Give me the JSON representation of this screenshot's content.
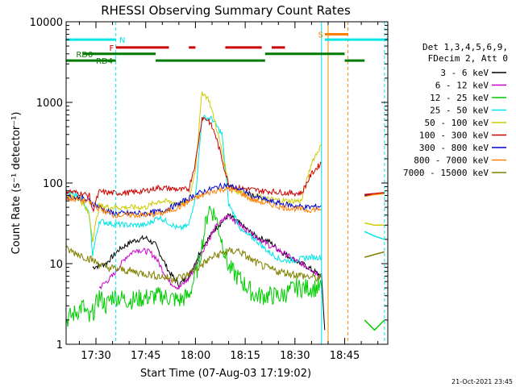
{
  "chart_data": {
    "type": "line",
    "title": "RHESSI Observing Summary Count Rates",
    "xlabel": "Start Time (07-Aug-03 17:19:02)",
    "ylabel": "Count Rate (s⁻¹ detector⁻¹)",
    "x_unit": "UT minutes",
    "xlim": [
      "17:21",
      "18:58"
    ],
    "ylim": [
      1,
      10000
    ],
    "y_scale": "log",
    "grid": false,
    "legend_position": "right",
    "legend_header": [
      "Det 1,3,4,5,6,9,",
      "FDecim 2, Att 0"
    ],
    "x_ticks": [
      "17:30",
      "17:45",
      "18:00",
      "18:15",
      "18:30",
      "18:45"
    ],
    "y_ticks": [
      "1",
      "10",
      "100",
      "1000",
      "10000"
    ],
    "series": [
      {
        "name": "3 - 6 keV",
        "color": "#000000",
        "x": [
          "17:29",
          "17:33",
          "17:37",
          "17:41",
          "17:45",
          "17:48",
          "17:52",
          "17:55",
          "17:58",
          "18:02",
          "18:06",
          "18:10",
          "18:14",
          "18:18",
          "18:22",
          "18:26",
          "18:30",
          "18:34",
          "18:38",
          "18:39"
        ],
        "y": [
          9,
          10,
          15,
          19,
          21,
          17,
          8,
          5.5,
          7,
          16,
          27,
          40,
          30,
          22,
          19,
          14,
          11,
          9,
          7,
          1.5
        ]
      },
      {
        "name": "6 - 12 keV",
        "color": "#cc00cc",
        "x": [
          "17:31",
          "17:35",
          "17:39",
          "17:42",
          "17:46",
          "17:48",
          "17:52",
          "17:55",
          "17:58",
          "18:02",
          "18:06",
          "18:10",
          "18:14",
          "18:18",
          "18:22",
          "18:26",
          "18:30",
          "18:34",
          "18:38"
        ],
        "y": [
          5,
          7,
          12,
          15,
          14,
          12,
          6,
          5,
          6.5,
          14,
          28,
          40,
          29,
          22,
          17,
          14,
          11,
          9,
          7
        ]
      },
      {
        "name": "12 - 25 keV",
        "color": "#00cc00",
        "x": [
          "17:21",
          "17:24",
          "17:26",
          "17:28",
          "17:30",
          "17:31",
          "17:33",
          "17:35",
          "17:40",
          "17:45",
          "17:50",
          "17:55",
          "17:58",
          "18:01",
          "18:04",
          "18:06",
          "18:10",
          "18:14",
          "18:18",
          "18:22",
          "18:26",
          "18:30",
          "18:34",
          "18:38"
        ],
        "y": [
          2,
          2.5,
          3,
          2,
          3,
          4,
          3,
          4,
          3.5,
          3.8,
          4,
          3.5,
          4,
          10,
          50,
          40,
          9,
          6,
          4,
          4,
          4,
          5,
          5,
          5
        ]
      },
      {
        "name": "25 - 50 keV",
        "color": "#00e5e5",
        "x": [
          "17:21",
          "17:25",
          "17:28",
          "17:29",
          "17:31",
          "17:35",
          "17:40",
          "17:45",
          "17:49",
          "17:52",
          "17:55",
          "17:58",
          "18:00",
          "18:02",
          "18:05",
          "18:08",
          "18:10",
          "18:12",
          "18:14",
          "18:18",
          "18:22",
          "18:26",
          "18:30",
          "18:34",
          "18:38"
        ],
        "y": [
          75,
          70,
          40,
          13,
          34,
          31,
          30,
          30,
          38,
          32,
          27,
          30,
          70,
          650,
          630,
          400,
          55,
          38,
          25,
          20,
          14,
          11,
          11,
          12,
          12
        ]
      },
      {
        "name": "50 - 100 keV",
        "color": "#cccc00",
        "x": [
          "17:21",
          "17:25",
          "17:28",
          "17:29",
          "17:31",
          "17:35",
          "17:40",
          "17:45",
          "17:49",
          "17:53",
          "17:56",
          "17:58",
          "18:00",
          "18:02",
          "18:04",
          "18:06",
          "18:08",
          "18:10",
          "18:12",
          "18:15",
          "18:20",
          "18:24",
          "18:28",
          "18:32",
          "18:35",
          "18:38"
        ],
        "y": [
          70,
          65,
          40,
          20,
          52,
          50,
          50,
          50,
          60,
          58,
          55,
          60,
          150,
          1350,
          1100,
          550,
          250,
          100,
          80,
          75,
          65,
          62,
          60,
          60,
          180,
          300
        ]
      },
      {
        "name": "100 - 300 keV",
        "color": "#cc0000",
        "x": [
          "17:21",
          "17:25",
          "17:28",
          "17:29",
          "17:31",
          "17:35",
          "17:40",
          "17:45",
          "17:49",
          "17:53",
          "17:56",
          "17:58",
          "18:00",
          "18:02",
          "18:04",
          "18:06",
          "18:08",
          "18:10",
          "18:12",
          "18:15",
          "18:20",
          "18:24",
          "18:28",
          "18:32",
          "18:35",
          "18:38"
        ],
        "y": [
          80,
          75,
          70,
          45,
          78,
          75,
          76,
          80,
          88,
          85,
          82,
          85,
          180,
          650,
          600,
          400,
          200,
          95,
          88,
          85,
          80,
          78,
          75,
          75,
          130,
          180
        ]
      },
      {
        "name": "300 - 800 keV",
        "color": "#0000cc",
        "x": [
          "17:21",
          "17:25",
          "17:28",
          "17:31",
          "17:35",
          "17:40",
          "17:45",
          "17:50",
          "17:55",
          "18:00",
          "18:05",
          "18:09",
          "18:13",
          "18:17",
          "18:22",
          "18:26",
          "18:30",
          "18:34",
          "18:38"
        ],
        "y": [
          68,
          65,
          60,
          50,
          42,
          42,
          42,
          45,
          55,
          72,
          85,
          95,
          85,
          70,
          60,
          55,
          52,
          50,
          52
        ]
      },
      {
        "name": "800 - 7000 keV",
        "color": "#ff8000",
        "x": [
          "17:21",
          "17:25",
          "17:28",
          "17:31",
          "17:35",
          "17:40",
          "17:45",
          "17:50",
          "17:55",
          "18:00",
          "18:05",
          "18:09",
          "18:13",
          "18:17",
          "18:22",
          "18:26",
          "18:30",
          "18:34",
          "18:38"
        ],
        "y": [
          65,
          62,
          58,
          48,
          40,
          40,
          40,
          42,
          50,
          65,
          78,
          85,
          78,
          62,
          55,
          50,
          48,
          46,
          48
        ]
      },
      {
        "name": "7000 - 15000 keV",
        "color": "#808000",
        "x": [
          "17:21",
          "17:25",
          "17:29",
          "17:33",
          "17:37",
          "17:41",
          "17:45",
          "17:49",
          "17:53",
          "17:57",
          "18:01",
          "18:05",
          "18:09",
          "18:13",
          "18:17",
          "18:21",
          "18:25",
          "18:29",
          "18:33",
          "18:38"
        ],
        "y": [
          15,
          13,
          11,
          9,
          8.5,
          8,
          7.5,
          7,
          6.5,
          7,
          9,
          12,
          14,
          14.5,
          11,
          9,
          8,
          7.5,
          7,
          6.5
        ]
      }
    ],
    "late_segment": {
      "x": [
        "18:51",
        "18:54",
        "18:57"
      ],
      "series": [
        {
          "color": "#0000cc",
          "y": [
            70,
            72,
            75
          ]
        },
        {
          "color": "#cc0000",
          "y": [
            72,
            74,
            76
          ]
        },
        {
          "color": "#ff8000",
          "y": [
            68,
            72,
            74
          ]
        },
        {
          "color": "#cccc00",
          "y": [
            32,
            30,
            30
          ]
        },
        {
          "color": "#00e5e5",
          "y": [
            25,
            22,
            20
          ]
        },
        {
          "color": "#808000",
          "y": [
            12,
            13,
            14
          ]
        },
        {
          "color": "#00cc00",
          "y": [
            2,
            1.5,
            2
          ]
        }
      ]
    },
    "annotations": [
      {
        "label": "N",
        "color": "#00e5e5"
      },
      {
        "label": "F",
        "color": "#cc0000"
      },
      {
        "label": "RD0",
        "color": "#007a00"
      },
      {
        "label": "RD4",
        "color": "#007a00"
      },
      {
        "label": "S",
        "color": "#ff8000"
      }
    ],
    "bars": [
      {
        "name": "night",
        "color": "#00e5e5",
        "y": 6000,
        "segments": [
          [
            "17:21",
            "17:36"
          ],
          [
            "18:39",
            "18:58"
          ]
        ]
      },
      {
        "name": "flare",
        "color": "#cc0000",
        "y": 4800,
        "segments": [
          [
            "17:36",
            "17:52"
          ],
          [
            "17:58",
            "18:00"
          ],
          [
            "18:09",
            "18:20"
          ],
          [
            "18:23",
            "18:27"
          ]
        ]
      },
      {
        "name": "saa",
        "color": "#ff8000",
        "y": 7000,
        "segments": [
          [
            "18:39",
            "18:46"
          ]
        ]
      },
      {
        "name": "rd0",
        "color": "#007a00",
        "y": 4000,
        "segments": [
          [
            "17:26",
            "17:48"
          ],
          [
            "18:21",
            "18:45"
          ]
        ]
      },
      {
        "name": "rd4",
        "color": "#007a00",
        "y": 3300,
        "segments": [
          [
            "17:21",
            "17:36"
          ],
          [
            "17:48",
            "18:21"
          ],
          [
            "18:45",
            "18:51"
          ]
        ]
      }
    ],
    "vlines": [
      {
        "x": "17:21",
        "color": "#00e5e5",
        "style": "solid"
      },
      {
        "x": "17:36",
        "color": "#00e5e5",
        "style": "dashed"
      },
      {
        "x": "18:38",
        "color": "#00e5e5",
        "style": "solid"
      },
      {
        "x": "18:40",
        "color": "#ff8000",
        "style": "solid"
      },
      {
        "x": "18:46",
        "color": "#ff8000",
        "style": "dashed"
      },
      {
        "x": "18:57",
        "color": "#00e5e5",
        "style": "dashed"
      }
    ],
    "timestamp": "21-Oct-2021 23:45"
  }
}
